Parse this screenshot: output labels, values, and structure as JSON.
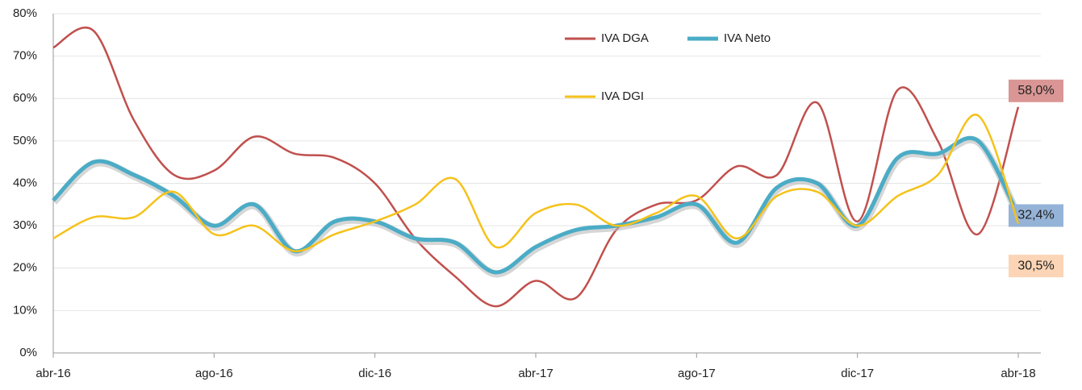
{
  "chart_data": {
    "type": "line",
    "categories": [
      "abr-16",
      null,
      null,
      null,
      "ago-16",
      null,
      null,
      null,
      "dic-16",
      null,
      null,
      null,
      "abr-17",
      null,
      null,
      null,
      "ago-17",
      null,
      null,
      null,
      "dic-17",
      null,
      null,
      null,
      "abr-18"
    ],
    "series": [
      {
        "name": "IVA DGA",
        "color": "#c0504d",
        "values": [
          72,
          76,
          55,
          42,
          43,
          51,
          47,
          46,
          40,
          27,
          18,
          11,
          17,
          13,
          29,
          35,
          36,
          44,
          42,
          59,
          31,
          62,
          50,
          28,
          58
        ],
        "value_labels": [
          null,
          null,
          null,
          null,
          null,
          null,
          null,
          null,
          null,
          null,
          null,
          null,
          null,
          null,
          null,
          null,
          null,
          null,
          null,
          null,
          null,
          null,
          null,
          null,
          "58,0%"
        ],
        "label_color": "#d99694"
      },
      {
        "name": "IVA Neto",
        "color": "#4bacc6",
        "values": [
          36,
          45,
          42,
          37,
          30,
          35,
          24,
          31,
          31,
          27,
          26,
          19,
          25,
          29,
          30,
          32,
          35,
          26,
          39,
          40,
          30,
          46,
          47,
          50,
          32.4
        ],
        "value_labels": [
          null,
          null,
          null,
          null,
          null,
          null,
          null,
          null,
          null,
          null,
          null,
          null,
          null,
          null,
          null,
          null,
          null,
          null,
          null,
          null,
          null,
          null,
          null,
          null,
          "32,4%"
        ],
        "label_color": "#95b3d7"
      },
      {
        "name": "IVA DGI",
        "color": "#f5c21b",
        "values": [
          27,
          32,
          32,
          38,
          28,
          30,
          24,
          28,
          31,
          35,
          41,
          25,
          33,
          35,
          30,
          33,
          37,
          27,
          37,
          38,
          30,
          37,
          42,
          56,
          30.5
        ],
        "value_labels": [
          null,
          null,
          null,
          null,
          null,
          null,
          null,
          null,
          null,
          null,
          null,
          null,
          null,
          null,
          null,
          null,
          null,
          null,
          null,
          null,
          null,
          null,
          null,
          null,
          "30,5%"
        ],
        "label_color": "#fbd5b5"
      }
    ],
    "ylim": [
      0,
      80
    ],
    "yticks": [
      {
        "value": 0,
        "label": "0%"
      },
      {
        "value": 10,
        "label": "10%"
      },
      {
        "value": 20,
        "label": "20%"
      },
      {
        "value": 30,
        "label": "30%"
      },
      {
        "value": 40,
        "label": "40%"
      },
      {
        "value": 50,
        "label": "50%"
      },
      {
        "value": 60,
        "label": "60%"
      },
      {
        "value": 70,
        "label": "70%"
      },
      {
        "value": 80,
        "label": "80%"
      }
    ],
    "grid": true
  }
}
